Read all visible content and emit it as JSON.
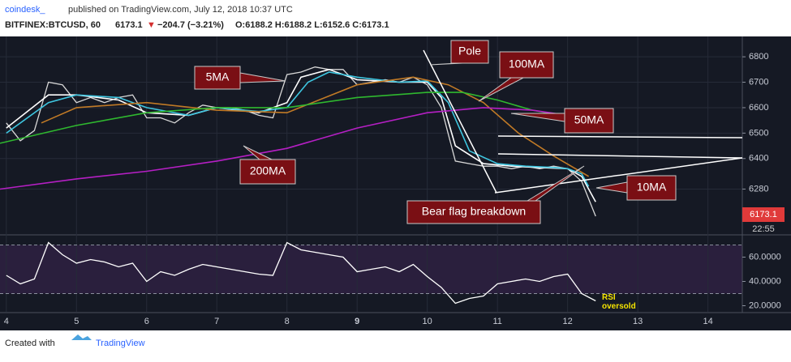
{
  "header": {
    "author": "coindesk_",
    "published": "published on TradingView.com, July 12, 2018 10:37 UTC",
    "symbol": "BITFINEX:BTCUSD, 60",
    "last": "6173.1",
    "arrow": "▼",
    "change": "−204.7 (−3.21%)",
    "ohlc": "O:6188.2 H:6188.2 L:6152.6 C:6173.1"
  },
  "footer": {
    "created": "Created with",
    "brand": "TradingView"
  },
  "price_tag": {
    "price": "6173.1",
    "time": "22:55"
  },
  "chart_data": [
    {
      "type": "line",
      "xlim": [
        3.91,
        14.49
      ],
      "ylim": [
        6100,
        6880
      ],
      "xticks": [
        4,
        5,
        6,
        7,
        8,
        9,
        10,
        11,
        12,
        13,
        14
      ],
      "yticks": [
        6280,
        6400,
        6500,
        6600,
        6700,
        6800
      ],
      "grid": true,
      "annotations": {
        "pole": "Pole",
        "flag": "Bear flag breakdown"
      },
      "series": [
        {
          "color": "#d8d8d8",
          "x": [
            4.0,
            4.2,
            4.4,
            4.6,
            4.8,
            5.0,
            5.2,
            5.4,
            5.6,
            5.8,
            6.0,
            6.2,
            6.4,
            6.6,
            6.8,
            7.0,
            7.2,
            7.4,
            7.6,
            7.8,
            8.0,
            8.2,
            8.4,
            8.6,
            8.8,
            9.0,
            9.2,
            9.4,
            9.6,
            9.8,
            10.0,
            10.2,
            10.4,
            10.6,
            10.8,
            11.0,
            11.2,
            11.4,
            11.6,
            11.8,
            12.0,
            12.2,
            12.4
          ],
          "values": [
            6540,
            6470,
            6510,
            6700,
            6690,
            6620,
            6640,
            6620,
            6640,
            6650,
            6560,
            6560,
            6540,
            6580,
            6610,
            6600,
            6600,
            6590,
            6570,
            6560,
            6730,
            6740,
            6760,
            6750,
            6750,
            6690,
            6700,
            6710,
            6700,
            6720,
            6690,
            6600,
            6390,
            6380,
            6370,
            6370,
            6360,
            6370,
            6360,
            6370,
            6360,
            6310,
            6173.1
          ]
        },
        {
          "name": "5MA",
          "color": "#ffffff",
          "x": [
            4.0,
            4.6,
            5.0,
            5.6,
            6.0,
            6.6,
            7.0,
            7.6,
            8.0,
            8.2,
            8.6,
            9.0,
            9.6,
            10.0,
            10.2,
            10.4,
            10.8,
            11.2,
            11.6,
            12.0,
            12.2,
            12.4
          ],
          "values": [
            6520,
            6650,
            6650,
            6630,
            6580,
            6570,
            6600,
            6580,
            6620,
            6720,
            6750,
            6710,
            6700,
            6700,
            6640,
            6450,
            6380,
            6370,
            6365,
            6360,
            6330,
            6230
          ]
        },
        {
          "name": "10MA",
          "color": "#3ec6e0",
          "x": [
            4.0,
            4.6,
            5.0,
            5.6,
            6.0,
            6.6,
            7.0,
            7.6,
            8.0,
            8.3,
            8.6,
            9.0,
            9.6,
            10.0,
            10.3,
            10.6,
            11.0,
            11.4,
            11.8,
            12.0,
            12.2,
            12.3
          ],
          "values": [
            6500,
            6620,
            6650,
            6640,
            6600,
            6570,
            6600,
            6585,
            6600,
            6700,
            6740,
            6720,
            6700,
            6705,
            6620,
            6430,
            6380,
            6370,
            6365,
            6360,
            6340,
            6290
          ]
        },
        {
          "name": "50MA",
          "color": "#c17a26",
          "x": [
            4.5,
            5.0,
            6.0,
            7.0,
            8.0,
            9.0,
            9.8,
            10.3,
            10.8,
            11.3,
            11.8,
            12.3
          ],
          "values": [
            6540,
            6600,
            6620,
            6590,
            6580,
            6690,
            6720,
            6690,
            6620,
            6500,
            6410,
            6330
          ]
        },
        {
          "name": "100MA",
          "color": "#2fb82f",
          "x": [
            3.91,
            5.0,
            6.0,
            7.0,
            8.0,
            9.0,
            10.0,
            10.5,
            11.0,
            11.5,
            11.9
          ],
          "values": [
            6460,
            6530,
            6580,
            6600,
            6600,
            6640,
            6660,
            6660,
            6630,
            6590,
            6570
          ]
        },
        {
          "name": "200MA",
          "color": "#b51fc4",
          "x": [
            3.91,
            5.0,
            6.0,
            7.0,
            8.0,
            9.0,
            10.0,
            10.8,
            11.5,
            12.0
          ],
          "values": [
            6280,
            6320,
            6350,
            6390,
            6440,
            6520,
            6580,
            6600,
            6590,
            6570
          ]
        }
      ]
    },
    {
      "type": "line",
      "xlim": [
        3.91,
        14.49
      ],
      "ylim": [
        15,
        77
      ],
      "yticks": [
        {
          "value": 20,
          "label": "20.0000"
        },
        {
          "value": 40,
          "label": "40.0000"
        },
        {
          "value": 60,
          "label": "60.0000"
        }
      ],
      "bands": [
        30,
        70
      ],
      "annotation": "RSI oversold",
      "series": [
        {
          "color": "#ffffff",
          "x": [
            4.0,
            4.2,
            4.4,
            4.6,
            4.8,
            5.0,
            5.2,
            5.4,
            5.6,
            5.8,
            6.0,
            6.2,
            6.4,
            6.6,
            6.8,
            7.0,
            7.2,
            7.4,
            7.6,
            7.8,
            8.0,
            8.2,
            8.4,
            8.6,
            8.8,
            9.0,
            9.2,
            9.4,
            9.6,
            9.8,
            10.0,
            10.2,
            10.4,
            10.6,
            10.8,
            11.0,
            11.2,
            11.4,
            11.6,
            11.8,
            12.0,
            12.2,
            12.4
          ],
          "values": [
            45,
            38,
            42,
            72,
            62,
            55,
            58,
            56,
            52,
            55,
            40,
            48,
            45,
            50,
            54,
            52,
            50,
            48,
            46,
            45,
            72,
            66,
            64,
            62,
            60,
            48,
            50,
            52,
            48,
            54,
            44,
            35,
            22,
            26,
            28,
            38,
            40,
            42,
            40,
            44,
            46,
            30,
            24
          ]
        }
      ]
    }
  ]
}
